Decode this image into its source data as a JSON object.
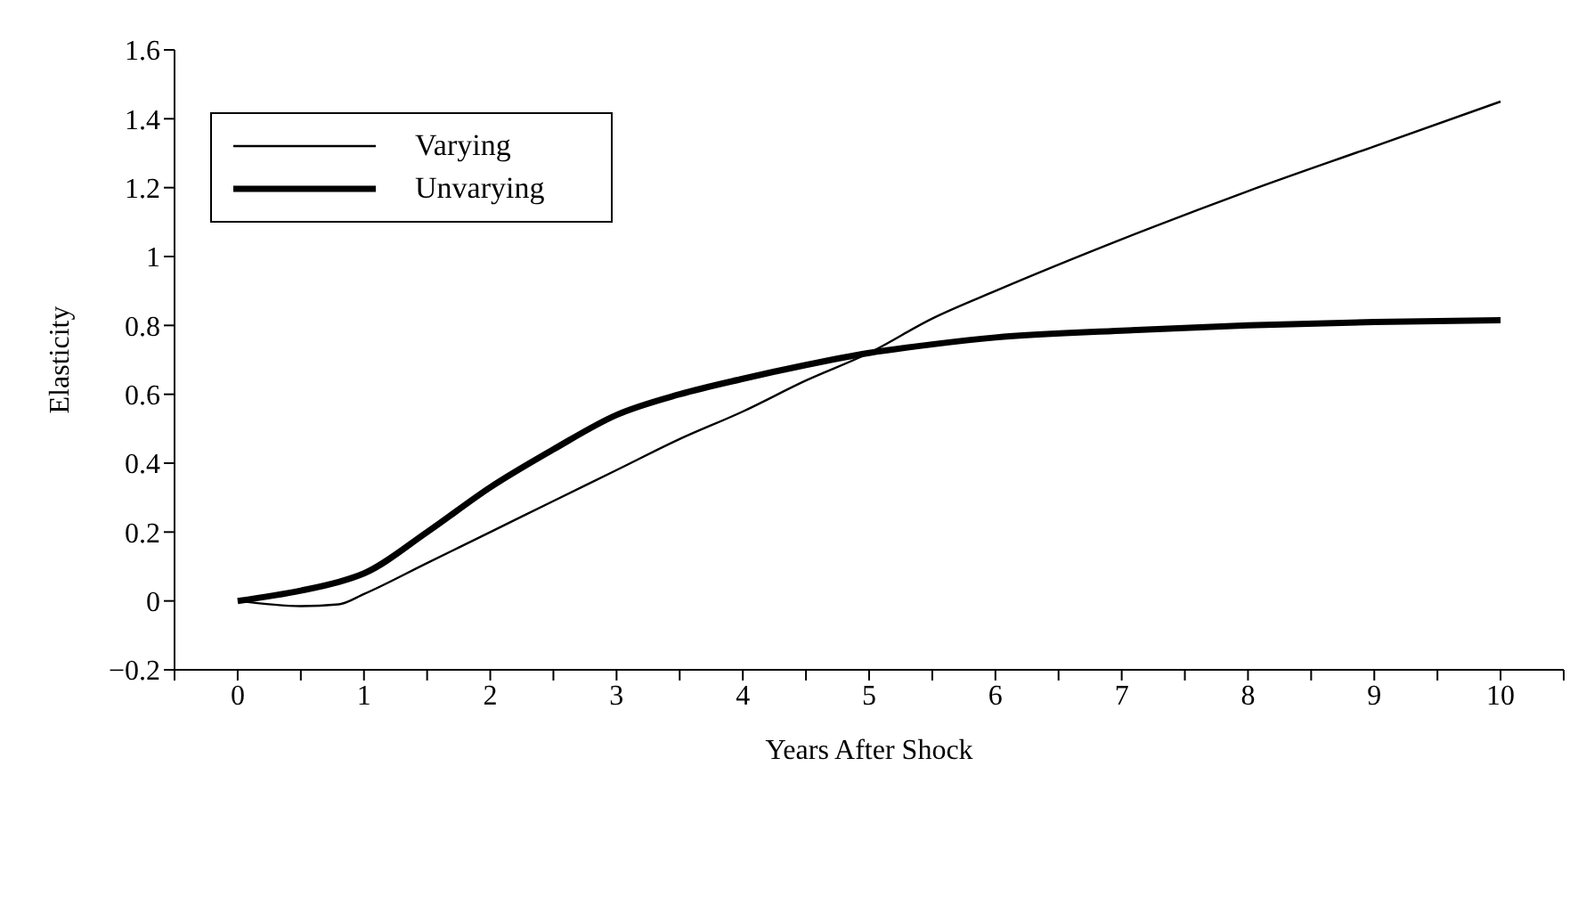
{
  "chart_data": {
    "type": "line",
    "xlabel": "Years After Shock",
    "ylabel": "Elasticity",
    "x": [
      0,
      0.5,
      0.8,
      1,
      1.5,
      2,
      2.5,
      3,
      3.5,
      4,
      4.5,
      5,
      5.5,
      6,
      7,
      8,
      9,
      10
    ],
    "series": [
      {
        "name": "Varying",
        "color": "#000000",
        "values": [
          0,
          -0.015,
          -0.01,
          0.02,
          0.11,
          0.2,
          0.29,
          0.38,
          0.47,
          0.55,
          0.64,
          0.72,
          0.82,
          0.9,
          1.05,
          1.19,
          1.32,
          1.45
        ]
      },
      {
        "name": "Unvarying",
        "color": "#000000",
        "values": [
          0,
          0.03,
          0.055,
          0.08,
          0.2,
          0.33,
          0.44,
          0.54,
          0.6,
          0.645,
          0.685,
          0.72,
          0.745,
          0.765,
          0.785,
          0.8,
          0.81,
          0.815
        ]
      }
    ],
    "xlim": [
      -0.5,
      10.5
    ],
    "xticks": [
      {
        "value": -0.5,
        "label": null
      },
      0,
      {
        "value": 0.5,
        "label": null
      },
      1,
      {
        "value": 1.5,
        "label": null
      },
      2,
      {
        "value": 2.5,
        "label": null
      },
      3,
      {
        "value": 3.5,
        "label": null
      },
      4,
      {
        "value": 4.5,
        "label": null
      },
      5,
      {
        "value": 5.5,
        "label": null
      },
      6,
      {
        "value": 6.5,
        "label": null
      },
      7,
      {
        "value": 7.5,
        "label": null
      },
      8,
      {
        "value": 8.5,
        "label": null
      },
      9,
      {
        "value": 9.5,
        "label": null
      },
      10,
      {
        "value": 10.5,
        "label": null
      }
    ],
    "ylim": [
      -0.2,
      1.6
    ],
    "yticks": [
      {
        "value": -0.2,
        "label": "−0.2"
      },
      0,
      0.2,
      0.4,
      0.6,
      0.8,
      1,
      1.2,
      1.4,
      1.6
    ],
    "legend": "top left",
    "grid": false,
    "marker": "none",
    "line_style": "solid"
  }
}
